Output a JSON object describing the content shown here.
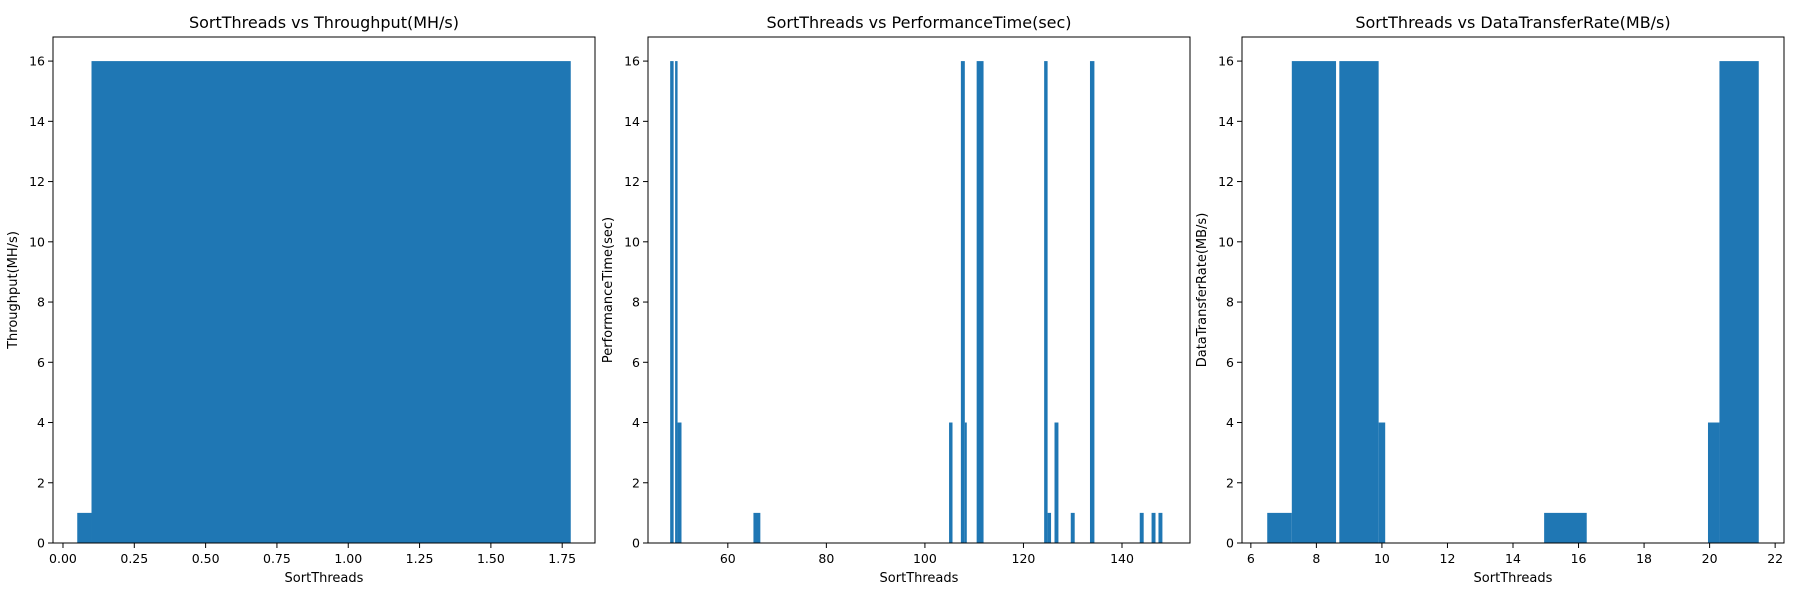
{
  "colors": {
    "bar": "#1f77b4",
    "background": "#ffffff",
    "axis": "#000000"
  },
  "chart_data": [
    {
      "type": "bar",
      "title": "SortThreads vs Throughput(MH/s)",
      "xlabel": "SortThreads",
      "ylabel": "Throughput(MH/s)",
      "xlim": [
        -0.035,
        1.865
      ],
      "ylim": [
        0,
        16.8
      ],
      "xticks": [
        "0.00",
        "0.25",
        "0.50",
        "0.75",
        "1.00",
        "1.25",
        "1.50",
        "1.75"
      ],
      "yticks": [
        "0",
        "2",
        "4",
        "6",
        "8",
        "10",
        "12",
        "14",
        "16"
      ],
      "grid": false,
      "bars": [
        {
          "x0": 0.05,
          "x1": 0.1,
          "value": 1
        },
        {
          "x0": 0.1,
          "x1": 1.78,
          "value": 16
        }
      ]
    },
    {
      "type": "bar",
      "title": "SortThreads vs PerformanceTime(sec)",
      "xlabel": "SortThreads",
      "ylabel": "PerformanceTime(sec)",
      "xlim": [
        43.8,
        153.8
      ],
      "ylim": [
        0,
        16.8
      ],
      "xticks": [
        "60",
        "80",
        "100",
        "120",
        "140"
      ],
      "yticks": [
        "0",
        "2",
        "4",
        "6",
        "8",
        "10",
        "12",
        "14",
        "16"
      ],
      "grid": false,
      "bars": [
        {
          "x0": 48.3,
          "x1": 49.0,
          "value": 16
        },
        {
          "x0": 49.3,
          "x1": 49.8,
          "value": 16
        },
        {
          "x0": 49.8,
          "x1": 50.6,
          "value": 4
        },
        {
          "x0": 65.2,
          "x1": 66.6,
          "value": 1
        },
        {
          "x0": 104.9,
          "x1": 105.6,
          "value": 4
        },
        {
          "x0": 107.3,
          "x1": 108.1,
          "value": 16
        },
        {
          "x0": 108.1,
          "x1": 108.5,
          "value": 4
        },
        {
          "x0": 110.5,
          "x1": 111.9,
          "value": 16
        },
        {
          "x0": 124.2,
          "x1": 124.9,
          "value": 16
        },
        {
          "x0": 124.9,
          "x1": 125.6,
          "value": 1
        },
        {
          "x0": 126.3,
          "x1": 127.1,
          "value": 4
        },
        {
          "x0": 129.6,
          "x1": 130.4,
          "value": 1
        },
        {
          "x0": 133.5,
          "x1": 134.4,
          "value": 16
        },
        {
          "x0": 143.6,
          "x1": 144.4,
          "value": 1
        },
        {
          "x0": 146.0,
          "x1": 146.8,
          "value": 1
        },
        {
          "x0": 147.4,
          "x1": 148.2,
          "value": 1
        }
      ]
    },
    {
      "type": "bar",
      "title": "SortThreads vs DataTransferRate(MB/s)",
      "xlabel": "SortThreads",
      "ylabel": "DataTransferRate(MB/s)",
      "xlim": [
        5.73,
        22.27
      ],
      "ylim": [
        0,
        16.8
      ],
      "xticks": [
        "6",
        "8",
        "10",
        "12",
        "14",
        "16",
        "18",
        "20",
        "22"
      ],
      "yticks": [
        "0",
        "2",
        "4",
        "6",
        "8",
        "10",
        "12",
        "14",
        "16"
      ],
      "grid": false,
      "bars": [
        {
          "x0": 6.5,
          "x1": 7.25,
          "value": 1
        },
        {
          "x0": 7.25,
          "x1": 8.6,
          "value": 16
        },
        {
          "x0": 8.7,
          "x1": 9.9,
          "value": 16
        },
        {
          "x0": 9.9,
          "x1": 10.1,
          "value": 4
        },
        {
          "x0": 14.95,
          "x1": 16.25,
          "value": 1
        },
        {
          "x0": 19.95,
          "x1": 20.3,
          "value": 4
        },
        {
          "x0": 20.3,
          "x1": 21.5,
          "value": 16
        }
      ]
    }
  ]
}
